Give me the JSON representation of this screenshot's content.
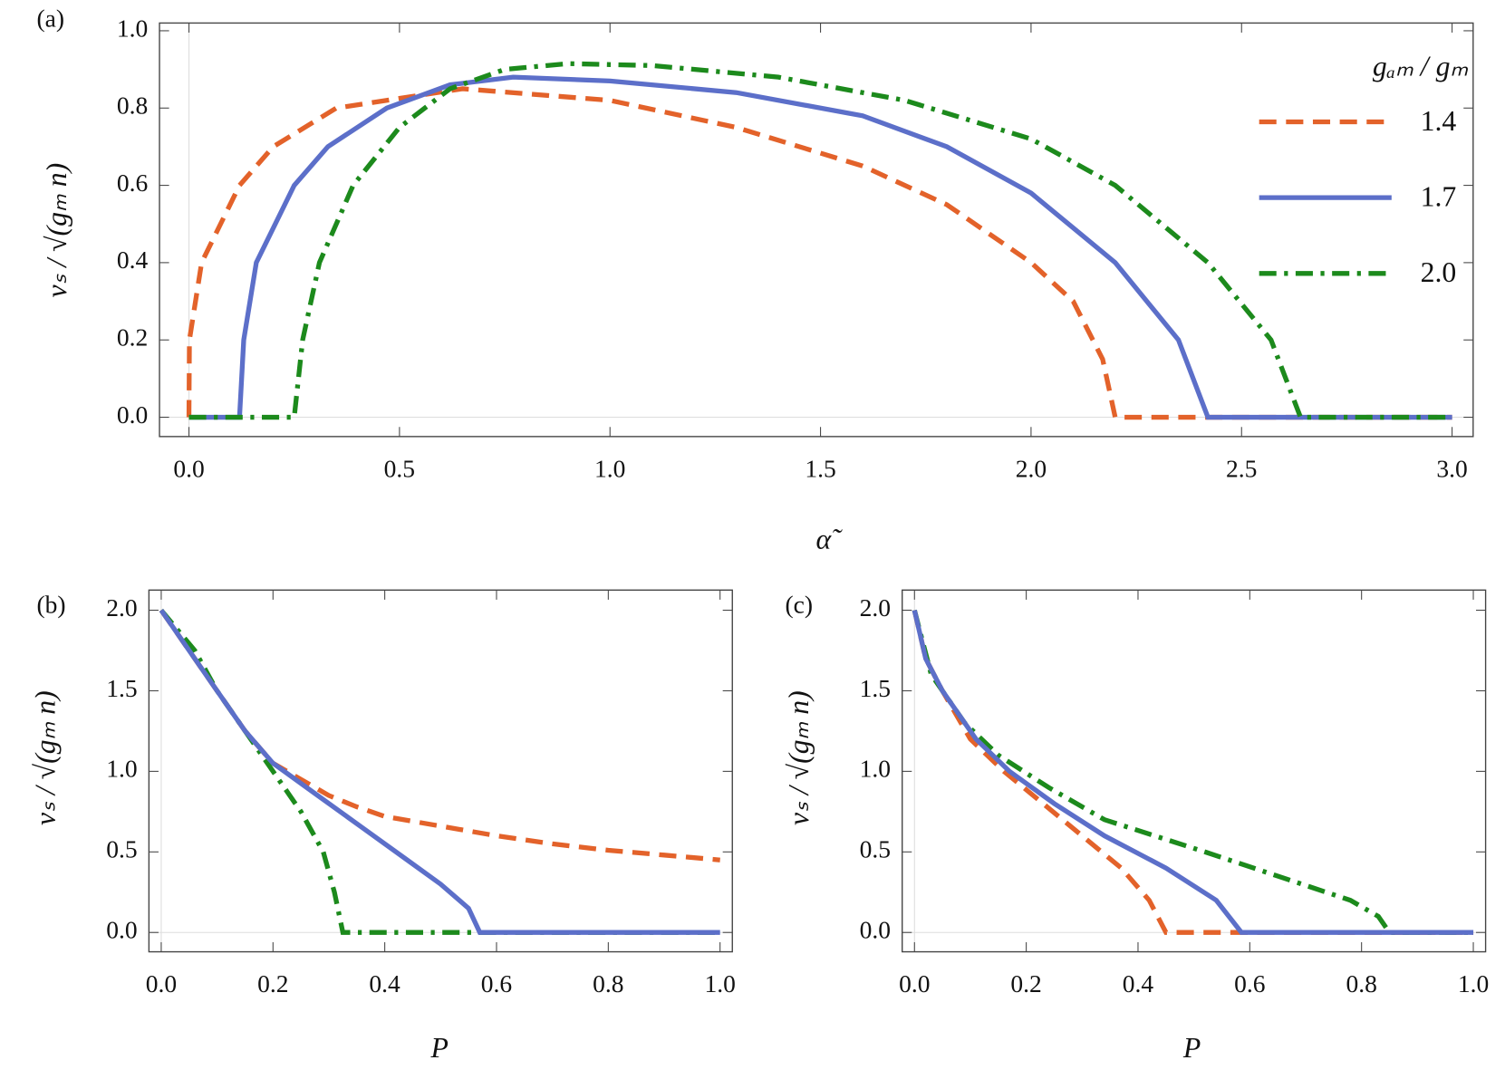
{
  "chart_data": [
    {
      "type": "line",
      "panel_label": "(a)",
      "xlabel": "α̃",
      "ylabel": "vₛ / √(gₘ n)",
      "legend_title": "gₐₘ / gₘ",
      "legend": "upper right",
      "xlim": [
        -0.07,
        3.05
      ],
      "ylim": [
        -0.05,
        1.02
      ],
      "xticks": [
        {
          "value": 0,
          "label": "0.0"
        },
        0.5,
        {
          "value": 1,
          "label": "1.0"
        },
        1.5,
        {
          "value": 2,
          "label": "2.0"
        },
        2.5,
        {
          "value": 3,
          "label": "3.0"
        }
      ],
      "yticks": [
        {
          "value": 0,
          "label": "0.0"
        },
        0.2,
        0.4,
        0.6,
        0.8,
        {
          "value": 1,
          "label": "1.0"
        }
      ],
      "series": [
        {
          "name": "1.4",
          "color": "#e3622a",
          "style": "dashed",
          "x": [
            0,
            0.001,
            0.03,
            0.12,
            0.2,
            0.35,
            0.65,
            1.0,
            1.3,
            1.6,
            1.8,
            2.0,
            2.1,
            2.17,
            2.2,
            3.0
          ],
          "values": [
            0,
            0.2,
            0.4,
            0.6,
            0.7,
            0.8,
            0.85,
            0.82,
            0.75,
            0.65,
            0.55,
            0.4,
            0.3,
            0.15,
            0,
            0
          ]
        },
        {
          "name": "1.7",
          "color": "#5c6fc9",
          "style": "solid",
          "x": [
            0,
            0.12,
            0.13,
            0.16,
            0.25,
            0.33,
            0.47,
            0.62,
            0.77,
            1.0,
            1.3,
            1.6,
            1.8,
            2.0,
            2.2,
            2.35,
            2.42,
            3.0
          ],
          "values": [
            0,
            0,
            0.2,
            0.4,
            0.6,
            0.7,
            0.8,
            0.86,
            0.88,
            0.87,
            0.84,
            0.78,
            0.7,
            0.58,
            0.4,
            0.2,
            0,
            0
          ]
        },
        {
          "name": "2.0",
          "color": "#1c8a1c",
          "style": "dashdot",
          "x": [
            0,
            0.25,
            0.27,
            0.31,
            0.39,
            0.5,
            0.62,
            0.75,
            0.9,
            1.1,
            1.4,
            1.7,
            2.0,
            2.2,
            2.42,
            2.57,
            2.64,
            3.0
          ],
          "values": [
            0,
            0,
            0.2,
            0.4,
            0.6,
            0.75,
            0.85,
            0.9,
            0.915,
            0.91,
            0.88,
            0.82,
            0.72,
            0.6,
            0.4,
            0.2,
            0,
            0
          ]
        }
      ]
    },
    {
      "type": "line",
      "panel_label": "(b)",
      "xlabel": "P",
      "ylabel": "vₛ / √(gₘ n)",
      "xlim": [
        -0.022,
        1.022
      ],
      "ylim": [
        -0.12,
        2.125
      ],
      "xticks": [
        {
          "value": 0,
          "label": "0.0"
        },
        0.2,
        0.4,
        0.6,
        0.8,
        {
          "value": 1,
          "label": "1.0"
        }
      ],
      "yticks": [
        {
          "value": 0,
          "label": "0.0"
        },
        0.5,
        {
          "value": 1,
          "label": "1.0"
        },
        1.5,
        {
          "value": 2,
          "label": "2.0"
        }
      ],
      "series": [
        {
          "name": "1.4",
          "color": "#e3622a",
          "style": "dashed",
          "x": [
            0,
            0.05,
            0.1,
            0.15,
            0.2,
            0.25,
            0.3,
            0.35,
            0.4,
            0.5,
            0.6,
            0.7,
            0.8,
            0.9,
            1.0
          ],
          "values": [
            2.0,
            1.75,
            1.5,
            1.25,
            1.05,
            0.95,
            0.85,
            0.78,
            0.72,
            0.66,
            0.6,
            0.55,
            0.51,
            0.48,
            0.45
          ]
        },
        {
          "name": "2.0",
          "color": "#1c8a1c",
          "style": "dashdot",
          "x": [
            0,
            0.06,
            0.1,
            0.15,
            0.2,
            0.25,
            0.29,
            0.31,
            0.325,
            1.0
          ],
          "values": [
            2.0,
            1.75,
            1.5,
            1.25,
            1.0,
            0.75,
            0.5,
            0.25,
            0,
            0
          ]
        },
        {
          "name": "1.7",
          "color": "#5c6fc9",
          "style": "solid",
          "x": [
            0,
            0.05,
            0.1,
            0.15,
            0.2,
            0.28,
            0.36,
            0.44,
            0.5,
            0.55,
            0.57,
            1.0
          ],
          "values": [
            2.0,
            1.75,
            1.5,
            1.25,
            1.05,
            0.85,
            0.65,
            0.45,
            0.3,
            0.15,
            0,
            0
          ]
        }
      ]
    },
    {
      "type": "line",
      "panel_label": "(c)",
      "xlabel": "P",
      "ylabel": "vₛ / √(gₘ n)",
      "xlim": [
        -0.022,
        1.022
      ],
      "ylim": [
        -0.12,
        2.125
      ],
      "xticks": [
        {
          "value": 0,
          "label": "0.0"
        },
        0.2,
        0.4,
        0.6,
        0.8,
        {
          "value": 1,
          "label": "1.0"
        }
      ],
      "yticks": [
        {
          "value": 0,
          "label": "0.0"
        },
        0.5,
        {
          "value": 1,
          "label": "1.0"
        },
        1.5,
        {
          "value": 2,
          "label": "2.0"
        }
      ],
      "series": [
        {
          "name": "1.4",
          "color": "#e3622a",
          "style": "dashed",
          "x": [
            0,
            0.02,
            0.05,
            0.1,
            0.16,
            0.23,
            0.3,
            0.37,
            0.42,
            0.45,
            1.0
          ],
          "values": [
            2.0,
            1.7,
            1.5,
            1.2,
            1.0,
            0.8,
            0.6,
            0.4,
            0.2,
            0,
            0
          ]
        },
        {
          "name": "2.0",
          "color": "#1c8a1c",
          "style": "dashdot",
          "x": [
            0,
            0.03,
            0.09,
            0.15,
            0.24,
            0.34,
            0.52,
            0.65,
            0.78,
            0.83,
            0.85,
            1.0
          ],
          "values": [
            2.0,
            1.6,
            1.3,
            1.1,
            0.9,
            0.7,
            0.5,
            0.35,
            0.2,
            0.1,
            0,
            0
          ]
        },
        {
          "name": "1.7",
          "color": "#5c6fc9",
          "style": "solid",
          "x": [
            0,
            0.02,
            0.05,
            0.11,
            0.17,
            0.25,
            0.34,
            0.45,
            0.54,
            0.585,
            1.0
          ],
          "values": [
            2.0,
            1.7,
            1.5,
            1.2,
            1.0,
            0.8,
            0.6,
            0.4,
            0.2,
            0,
            0
          ]
        }
      ]
    }
  ]
}
